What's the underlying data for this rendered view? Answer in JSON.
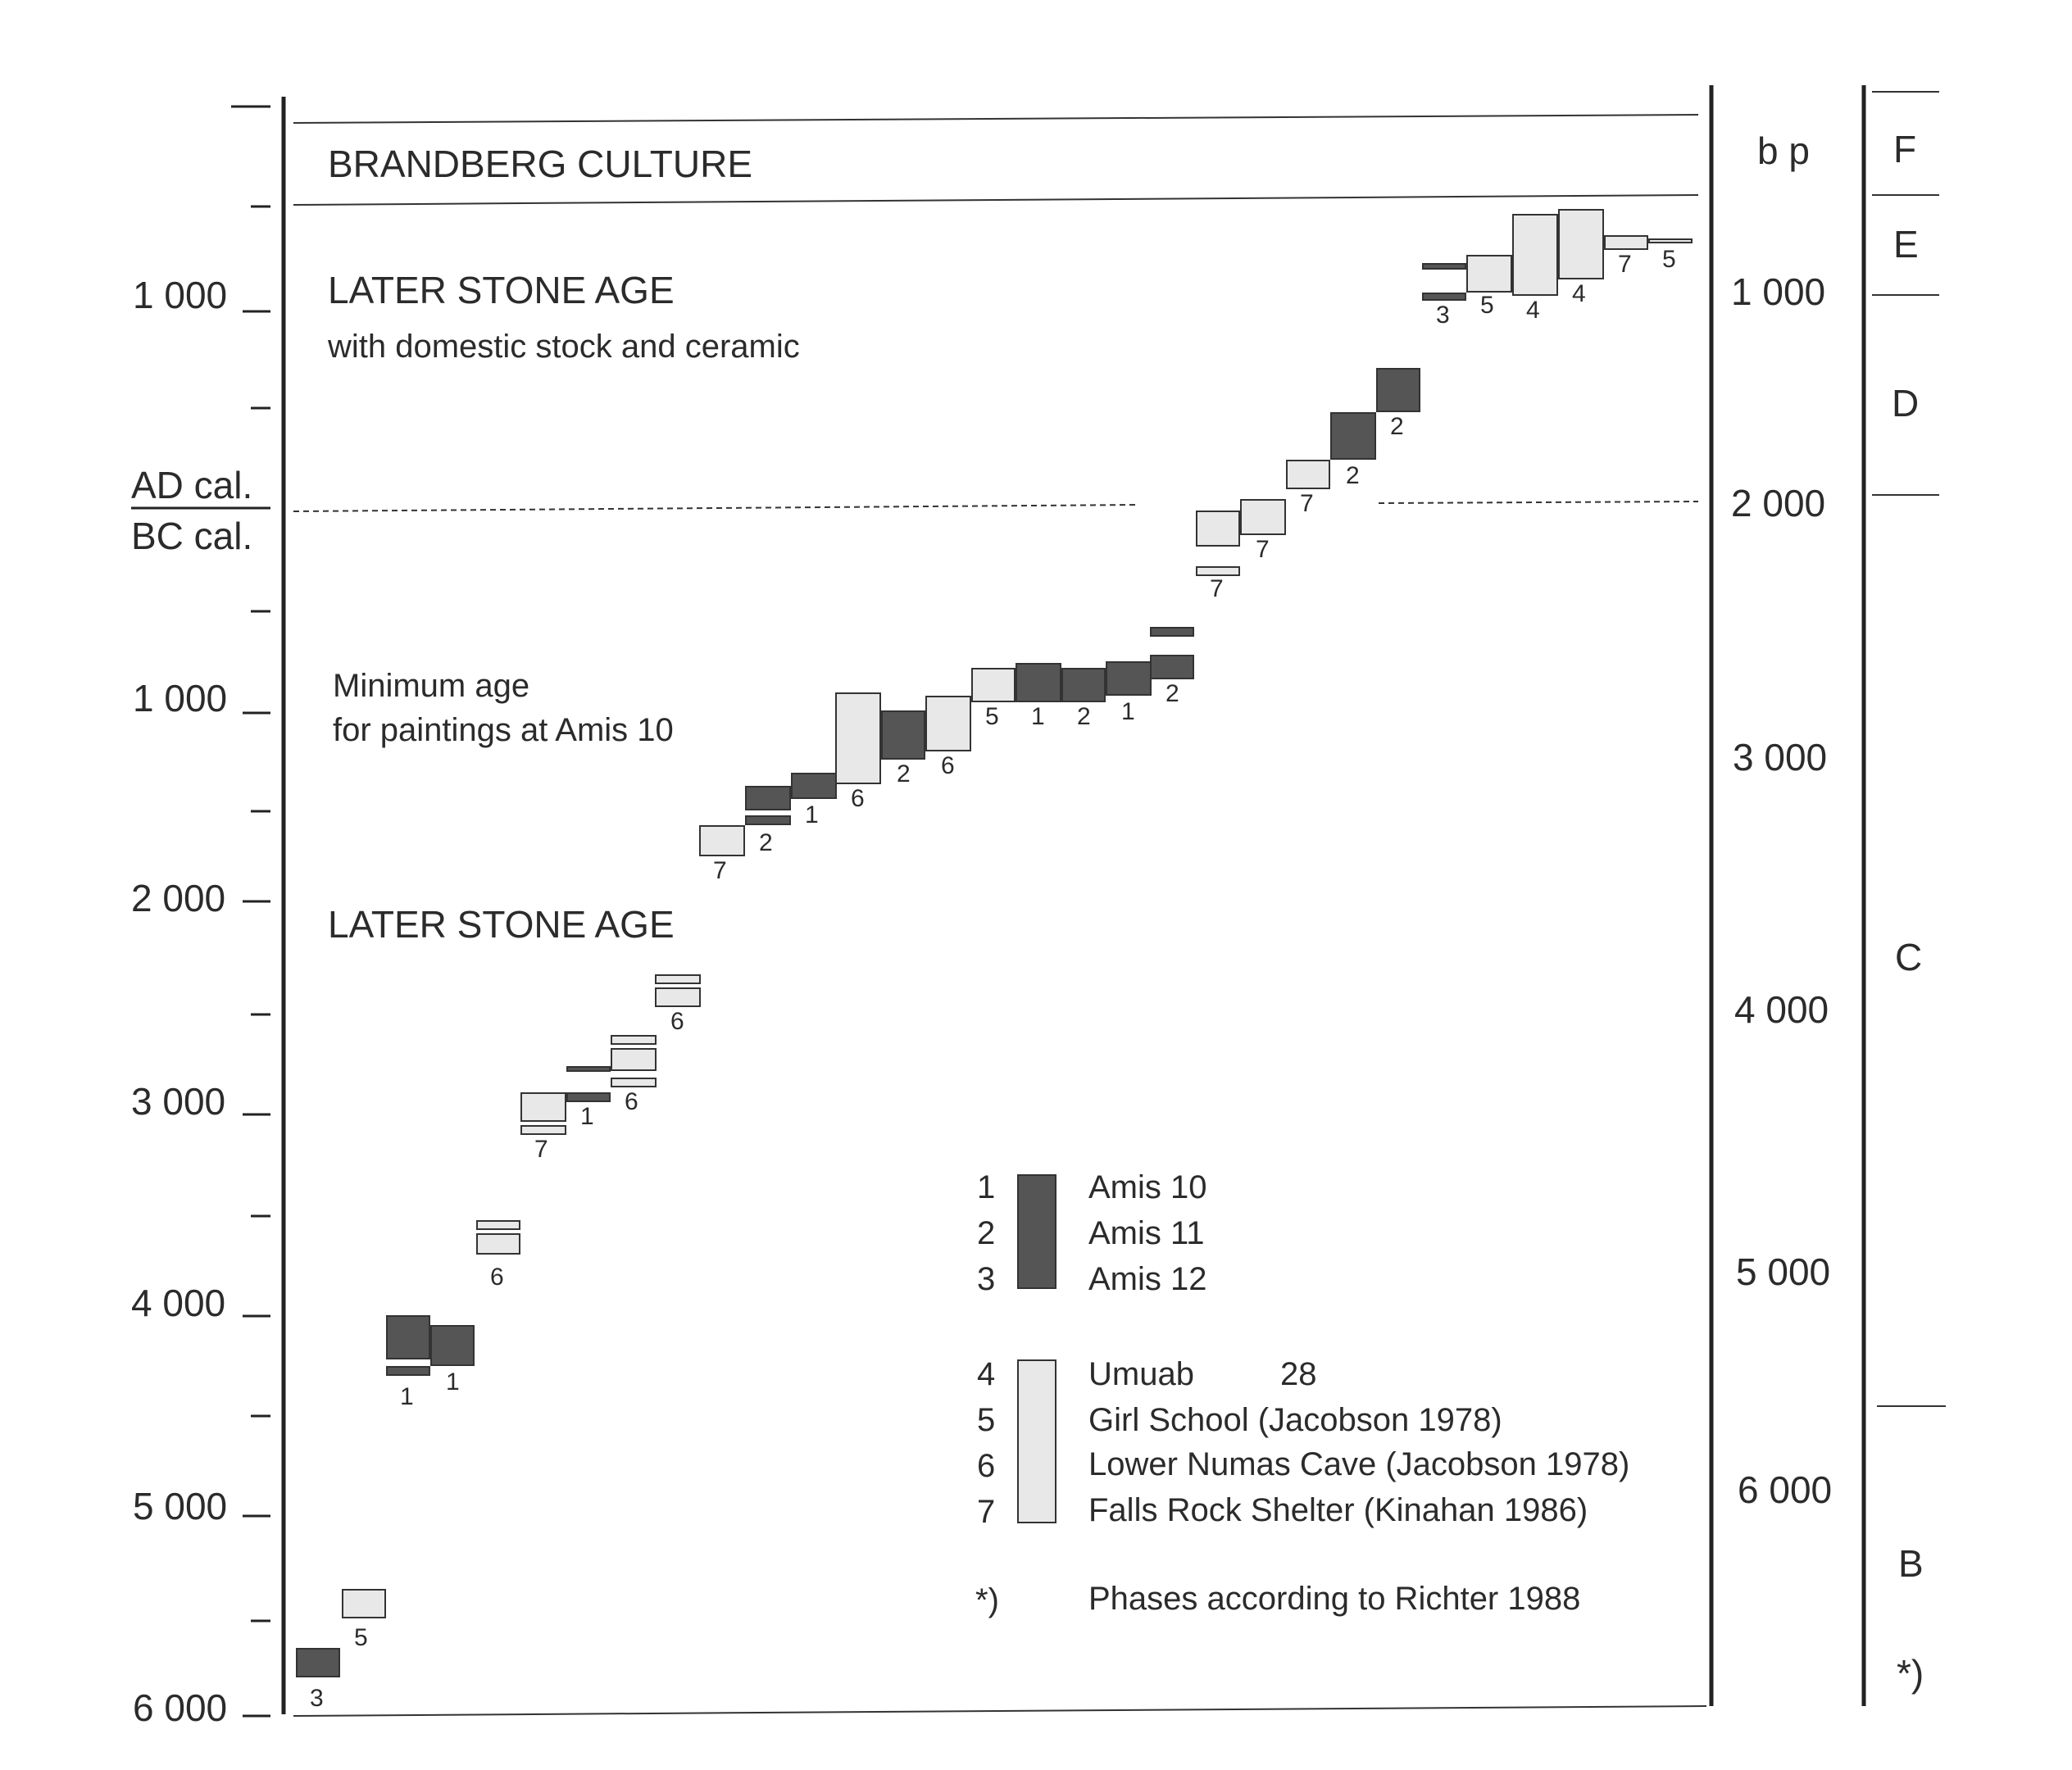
{
  "chart_data": {
    "type": "range-bars",
    "left_axis": {
      "unit_labels": [
        "AD cal.",
        "BC cal."
      ],
      "ticks_ad": [
        "1 000"
      ],
      "ticks_bc": [
        "1 000",
        "2 000",
        "3 000",
        "4 000",
        "5 000",
        "6 000"
      ]
    },
    "right_axis": {
      "label": "b p",
      "ticks": [
        "1 000",
        "2 000",
        "3 000",
        "4 000",
        "5 000",
        "6 000"
      ]
    },
    "phases": {
      "labels": [
        "F",
        "E",
        "D",
        "C",
        "B"
      ],
      "note": "*)"
    },
    "periods": {
      "brandberg": "BRANDBERG CULTURE",
      "lsa_domestic": "LATER STONE AGE",
      "lsa_domestic_sub": "with domestic stock and ceramic",
      "min_age_1": "Minimum age",
      "min_age_2": "for paintings at Amis 10",
      "lsa": "LATER STONE AGE"
    },
    "legend": {
      "dark": [
        {
          "num": "1",
          "name": "Amis 10"
        },
        {
          "num": "2",
          "name": "Amis 11"
        },
        {
          "num": "3",
          "name": "Amis 12"
        }
      ],
      "light": [
        {
          "num": "4",
          "name": "Umuab",
          "extra": "28"
        },
        {
          "num": "5",
          "name": "Girl School (Jacobson 1978)"
        },
        {
          "num": "6",
          "name": "Lower Numas Cave (Jacobson 1978)"
        },
        {
          "num": "7",
          "name": "Falls Rock Shelter (Kinahan 1986)"
        }
      ],
      "note_mark": "*)",
      "note_text": "Phases according to Richter 1988"
    },
    "dates": [
      {
        "site": "3",
        "from_bc": 6000,
        "to_bc": 5850
      },
      {
        "site": "5",
        "from_bc": 5600,
        "to_bc": 5450
      },
      {
        "site": "1",
        "from_bc": 4300,
        "to_bc": 4000
      },
      {
        "site": "1",
        "from_bc": 4200,
        "to_bc": 4050
      },
      {
        "site": "6",
        "from_bc": 3720,
        "to_bc": 3580
      },
      {
        "site": "7",
        "from_bc": 3140,
        "to_bc": 2990
      },
      {
        "site": "1",
        "from_bc": 2990,
        "to_bc": 2960
      },
      {
        "site": "6",
        "from_bc": 2880,
        "to_bc": 2620
      },
      {
        "site": "6",
        "from_bc": 2460,
        "to_bc": 2330
      },
      {
        "site": "7",
        "from_bc": 1650,
        "to_bc": 1500
      },
      {
        "site": "2",
        "from_bc": 1520,
        "to_bc": 1380
      },
      {
        "site": "1",
        "from_bc": 1460,
        "to_bc": 1340
      },
      {
        "site": "6",
        "from_bc": 1400,
        "to_bc": 1000
      },
      {
        "site": "2",
        "from_bc": 1280,
        "to_bc": 1050
      },
      {
        "site": "6",
        "from_bc": 1230,
        "to_bc": 1000
      },
      {
        "site": "5",
        "from_bc": 1020,
        "to_bc": 870
      },
      {
        "site": "1",
        "from_bc": 980,
        "to_bc": 850
      },
      {
        "site": "2",
        "from_bc": 1000,
        "to_bc": 850
      },
      {
        "site": "1",
        "from_bc": 960,
        "to_bc": 820
      },
      {
        "site": "2",
        "from_bc": 920,
        "to_bc": 800
      },
      {
        "site": "7",
        "from_bc": 180,
        "to_bc": 20
      },
      {
        "site": "7",
        "from_ad": 0,
        "to_ad": 160
      },
      {
        "site": "7",
        "from_ad": 200,
        "to_ad": 350
      },
      {
        "site": "2",
        "from_ad": 350,
        "to_ad": 550
      },
      {
        "site": "2",
        "from_ad": 580,
        "to_ad": 780
      },
      {
        "site": "3",
        "from_ad": 1000,
        "to_ad": 1050
      },
      {
        "site": "5",
        "from_ad": 1000,
        "to_ad": 1180
      },
      {
        "site": "4",
        "from_ad": 1000,
        "to_ad": 1380
      },
      {
        "site": "4",
        "from_ad": 1050,
        "to_ad": 1400
      },
      {
        "site": "7",
        "from_ad": 1250,
        "to_ad": 1310
      },
      {
        "site": "5",
        "from_ad": 1280,
        "to_ad": 1310
      }
    ]
  }
}
